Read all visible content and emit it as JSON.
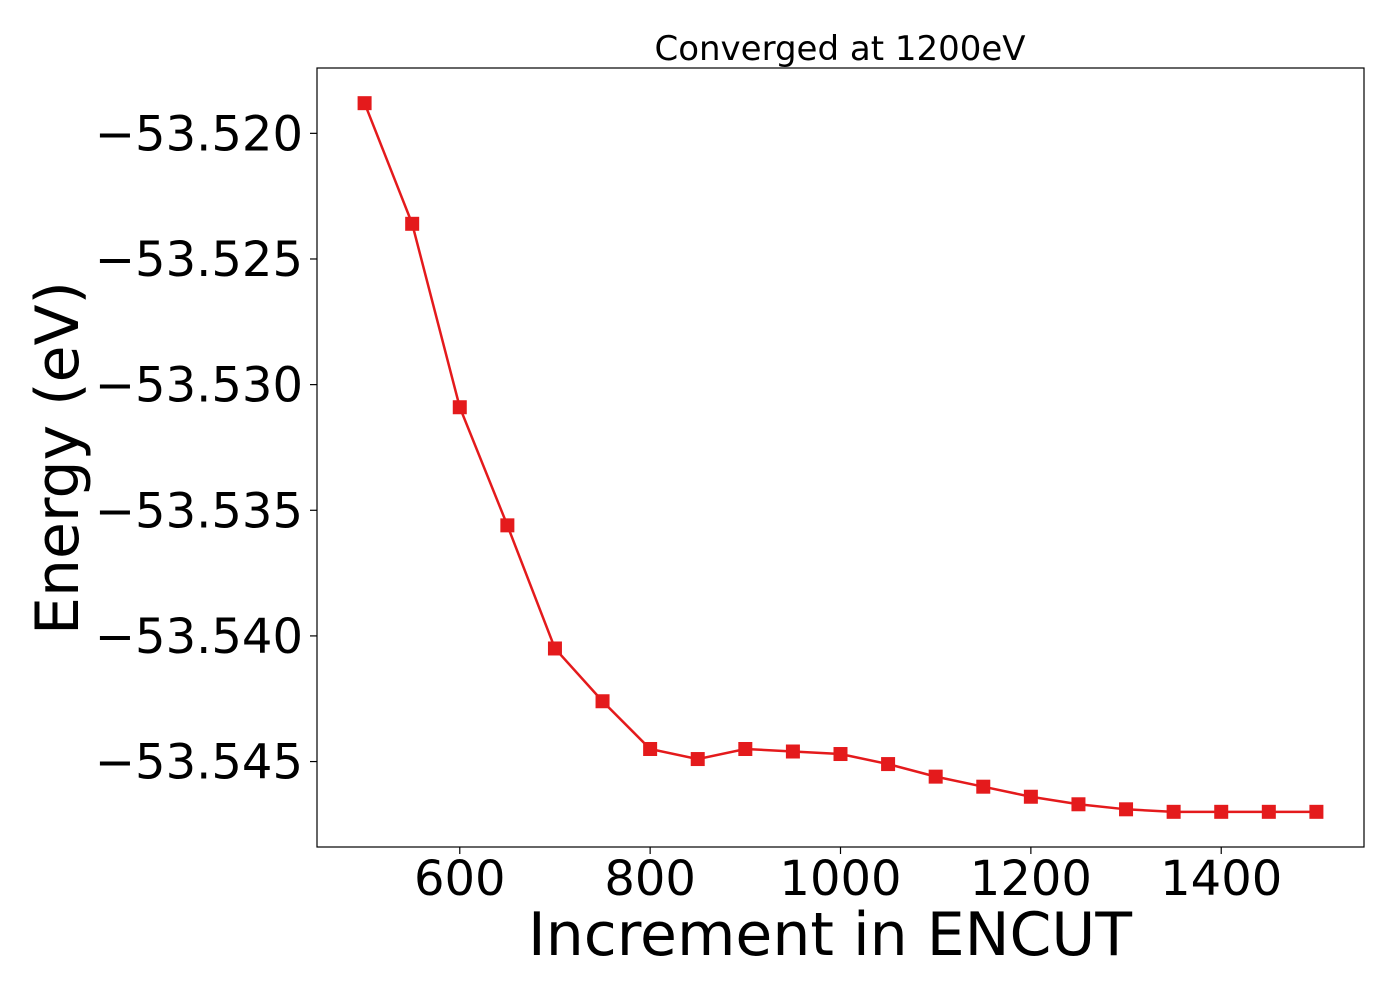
{
  "chart_data": {
    "type": "line",
    "title": "Converged at 1200eV",
    "xlabel": "Increment in ENCUT",
    "ylabel": "Energy (eV)",
    "x": [
      500,
      550,
      600,
      650,
      700,
      750,
      800,
      850,
      900,
      950,
      1000,
      1050,
      1100,
      1150,
      1200,
      1250,
      1300,
      1350,
      1400,
      1450,
      1500
    ],
    "series": [
      {
        "values": [
          -53.5188,
          -53.5236,
          -53.5309,
          -53.5356,
          -53.5405,
          -53.5426,
          -53.5445,
          -53.5449,
          -53.5445,
          -53.5446,
          -53.5447,
          -53.5451,
          -53.5456,
          -53.546,
          -53.5464,
          -53.5467,
          -53.5469,
          -53.547,
          -53.547,
          -53.547,
          -53.547
        ],
        "color": "#e41a1c",
        "marker": "square"
      }
    ],
    "xlim": [
      450,
      1550
    ],
    "ylim": [
      -53.5484,
      -53.5174
    ],
    "xticks": [
      600,
      800,
      1000,
      1200,
      1400
    ],
    "xtick_labels": [
      "600",
      "800",
      "1000",
      "1200",
      "1400"
    ],
    "yticks": [
      -53.52,
      -53.525,
      -53.53,
      -53.535,
      -53.54,
      -53.545
    ],
    "ytick_labels": [
      "−53.520",
      "−53.525",
      "−53.530",
      "−53.535",
      "−53.540",
      "−53.545"
    ],
    "grid": false,
    "legend": false
  }
}
